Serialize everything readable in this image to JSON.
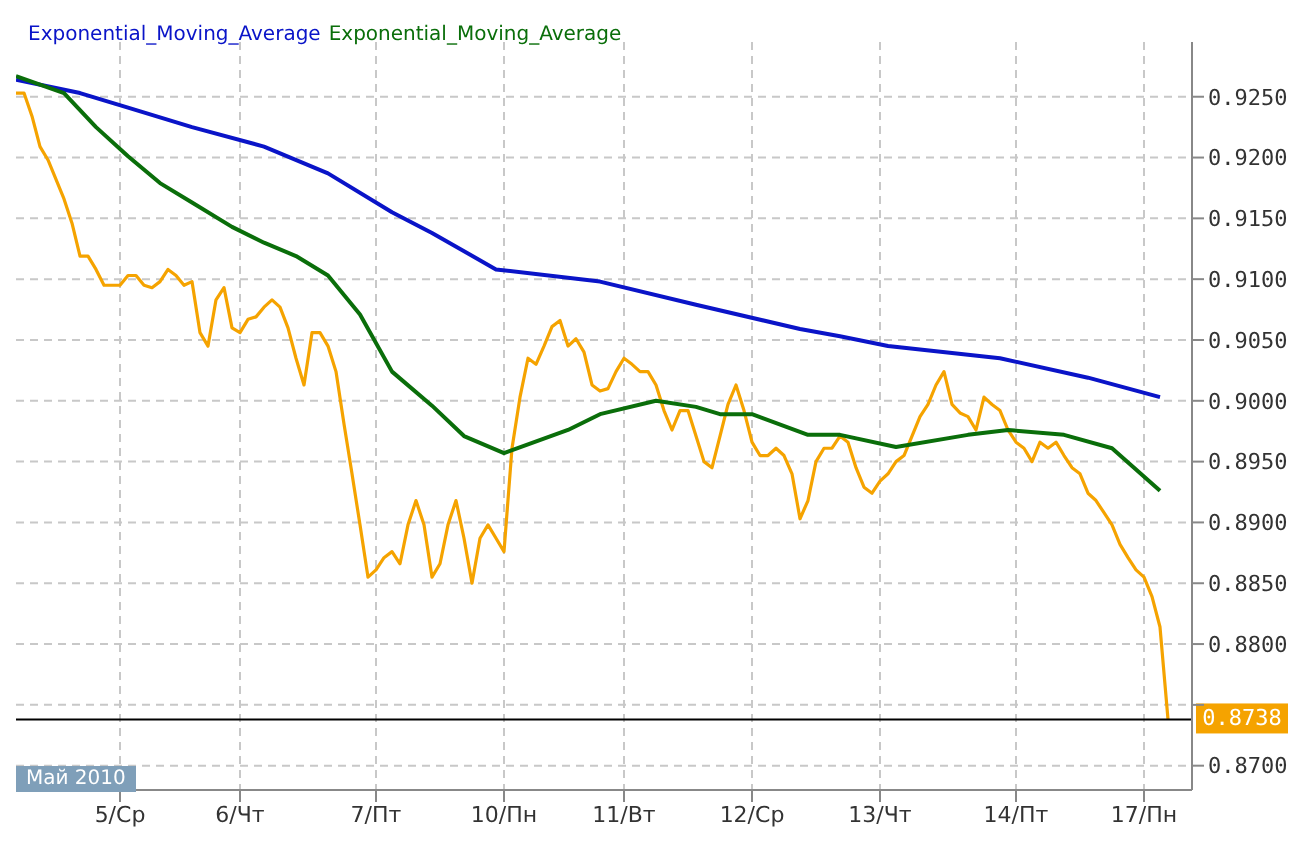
{
  "chart_data": {
    "type": "line",
    "categories": [
      null,
      null,
      null,
      null,
      null,
      null,
      null,
      null,
      null,
      null,
      null,
      null,
      null,
      "5/Ср",
      null,
      null,
      null,
      null,
      null,
      null,
      null,
      null,
      null,
      null,
      null,
      null,
      null,
      null,
      "6/Чт",
      null,
      null,
      null,
      null,
      null,
      null,
      null,
      null,
      null,
      null,
      null,
      null,
      null,
      null,
      null,
      null,
      "7/Пт",
      null,
      null,
      null,
      null,
      null,
      null,
      null,
      null,
      null,
      null,
      null,
      null,
      null,
      null,
      null,
      "10/Пн",
      null,
      null,
      null,
      null,
      null,
      null,
      null,
      null,
      null,
      null,
      null,
      null,
      null,
      null,
      "11/Вт",
      null,
      null,
      null,
      null,
      null,
      null,
      null,
      null,
      null,
      null,
      null,
      null,
      null,
      null,
      null,
      "12/Ср",
      null,
      null,
      null,
      null,
      null,
      null,
      null,
      null,
      null,
      null,
      null,
      null,
      null,
      null,
      null,
      "13/Чт",
      null,
      null,
      null,
      null,
      null,
      null,
      null,
      null,
      null,
      null,
      null,
      null,
      null,
      null,
      null,
      null,
      "14/Пт",
      null,
      null,
      null,
      null,
      null,
      null,
      null,
      null,
      null,
      null,
      null,
      null,
      null,
      null,
      null,
      "17/Пн",
      null,
      null,
      null,
      null,
      null,
      null
    ],
    "series": [
      {
        "color": "#f5a300",
        "values": [
          0.9253,
          0.9253,
          0.9234,
          0.9209,
          0.9198,
          0.9182,
          0.9166,
          0.9146,
          0.9119,
          0.9119,
          0.9108,
          0.9095,
          0.9095,
          0.9095,
          0.9103,
          0.9103,
          0.9095,
          0.9093,
          0.9098,
          0.9108,
          0.9103,
          0.9095,
          0.9098,
          0.9056,
          0.9045,
          0.9083,
          0.9093,
          0.906,
          0.9056,
          0.9067,
          0.9069,
          0.9077,
          0.9083,
          0.9077,
          0.906,
          0.9035,
          0.9013,
          0.9056,
          0.9056,
          0.9045,
          0.9024,
          0.8981,
          0.894,
          0.8898,
          0.8855,
          0.8861,
          0.8871,
          0.8876,
          0.8866,
          0.8898,
          0.8918,
          0.8898,
          0.8855,
          0.8866,
          0.8898,
          0.8918,
          0.8887,
          0.885,
          0.8887,
          0.8898,
          0.8887,
          0.8876,
          0.8961,
          0.9003,
          0.9035,
          0.903,
          0.9045,
          0.9061,
          0.9066,
          0.9045,
          0.9051,
          0.904,
          0.9013,
          0.9008,
          0.901,
          0.9024,
          0.9035,
          0.903,
          0.9024,
          0.9024,
          0.9013,
          0.8992,
          0.8976,
          0.8992,
          0.8992,
          0.8971,
          0.895,
          0.8945,
          0.8971,
          0.8997,
          0.9013,
          0.8992,
          0.8966,
          0.8955,
          0.8955,
          0.8961,
          0.8955,
          0.894,
          0.8903,
          0.8918,
          0.895,
          0.8961,
          0.8961,
          0.8971,
          0.8966,
          0.8945,
          0.8929,
          0.8924,
          0.8934,
          0.894,
          0.895,
          0.8955,
          0.8971,
          0.8987,
          0.8997,
          0.9013,
          0.9024,
          0.8997,
          0.899,
          0.8987,
          0.8976,
          0.9003,
          0.8997,
          0.8992,
          0.8976,
          0.8966,
          0.8961,
          0.895,
          0.8966,
          0.8961,
          0.8966,
          0.8955,
          0.8945,
          0.894,
          0.8924,
          0.8918,
          0.8908,
          0.8898,
          0.8882,
          0.8871,
          0.8861,
          0.8855,
          0.8839,
          0.8814,
          0.8738,
          null,
          null,
          null
        ]
      },
      {
        "name": "Exponential_Moving_Average",
        "color": "#0a14c8",
        "values": [
          0.9264,
          null,
          null,
          null,
          null,
          null,
          null,
          null,
          0.9253,
          null,
          null,
          null,
          null,
          null,
          0.9241,
          null,
          null,
          null,
          null,
          null,
          null,
          null,
          0.9225,
          null,
          null,
          null,
          null,
          null,
          null,
          null,
          null,
          0.9209,
          null,
          null,
          null,
          null,
          null,
          null,
          null,
          0.9187,
          null,
          null,
          null,
          null,
          null,
          null,
          null,
          0.9155,
          null,
          null,
          null,
          null,
          0.9138,
          null,
          null,
          null,
          null,
          null,
          null,
          null,
          0.9108,
          null,
          null,
          null,
          null,
          null,
          null,
          null,
          null,
          null,
          null,
          null,
          null,
          0.9098,
          null,
          null,
          null,
          null,
          null,
          null,
          null,
          null,
          null,
          null,
          null,
          0.9079,
          null,
          null,
          null,
          null,
          null,
          null,
          null,
          null,
          null,
          null,
          null,
          null,
          0.9059,
          null,
          null,
          null,
          null,
          0.9053,
          null,
          null,
          null,
          null,
          null,
          0.9045,
          null,
          null,
          null,
          null,
          null,
          null,
          null,
          null,
          null,
          null,
          null,
          null,
          null,
          0.9035,
          null,
          null,
          null,
          null,
          null,
          null,
          null,
          null,
          null,
          null,
          0.9019,
          null,
          null,
          null,
          null,
          null,
          null,
          null,
          null,
          0.9003,
          null,
          null,
          null,
          null
        ]
      },
      {
        "name": "Exponential_Moving_Average",
        "color": "#0a6e0a",
        "values": [
          0.9267,
          null,
          null,
          null,
          null,
          null,
          0.9253,
          null,
          null,
          null,
          0.9225,
          null,
          null,
          null,
          0.9201,
          null,
          null,
          null,
          0.9179,
          null,
          null,
          null,
          0.9163,
          null,
          null,
          null,
          null,
          0.9143,
          null,
          null,
          null,
          0.913,
          null,
          null,
          null,
          0.9119,
          null,
          null,
          null,
          0.9103,
          null,
          null,
          null,
          0.9071,
          null,
          null,
          null,
          0.9024,
          null,
          null,
          null,
          null,
          0.8996,
          null,
          null,
          null,
          0.8971,
          null,
          null,
          null,
          null,
          0.8957,
          null,
          null,
          null,
          null,
          null,
          null,
          null,
          0.8976,
          null,
          null,
          null,
          0.8989,
          null,
          null,
          null,
          null,
          null,
          null,
          0.9,
          null,
          null,
          null,
          null,
          0.8995,
          null,
          null,
          0.8989,
          null,
          null,
          null,
          0.8989,
          null,
          null,
          null,
          null,
          null,
          null,
          0.8972,
          null,
          null,
          null,
          0.8972,
          null,
          null,
          null,
          null,
          null,
          null,
          0.8962,
          null,
          null,
          null,
          null,
          null,
          null,
          null,
          null,
          0.8972,
          null,
          null,
          null,
          null,
          0.8976,
          null,
          null,
          null,
          null,
          null,
          null,
          0.8972,
          null,
          null,
          null,
          null,
          null,
          0.8961,
          null,
          null,
          null,
          null,
          null,
          0.8926,
          null,
          null,
          null,
          null
        ]
      }
    ],
    "ylim": [
      0.868,
      0.9295
    ],
    "yticks": [
      {
        "value": 0.87,
        "label": "0.8700"
      },
      {
        "value": 0.875,
        "label": null
      },
      {
        "value": 0.88,
        "label": "0.8800"
      },
      {
        "value": 0.885,
        "label": "0.8850"
      },
      {
        "value": 0.89,
        "label": "0.8900"
      },
      {
        "value": 0.895,
        "label": "0.8950"
      },
      {
        "value": 0.9,
        "label": "0.9000"
      },
      {
        "value": 0.905,
        "label": "0.9050"
      },
      {
        "value": 0.91,
        "label": "0.9100"
      },
      {
        "value": 0.915,
        "label": "0.9150"
      },
      {
        "value": 0.92,
        "label": "0.9200"
      },
      {
        "value": 0.925,
        "label": "0.9250"
      }
    ],
    "ref_lines": [
      {
        "axis": "y",
        "value": 0.8738,
        "label": "0.8738",
        "color": "#000000"
      }
    ],
    "annotations": [
      "Май 2010"
    ],
    "grid": true,
    "legend": "top left",
    "marker": "none",
    "line_style": "solid"
  }
}
